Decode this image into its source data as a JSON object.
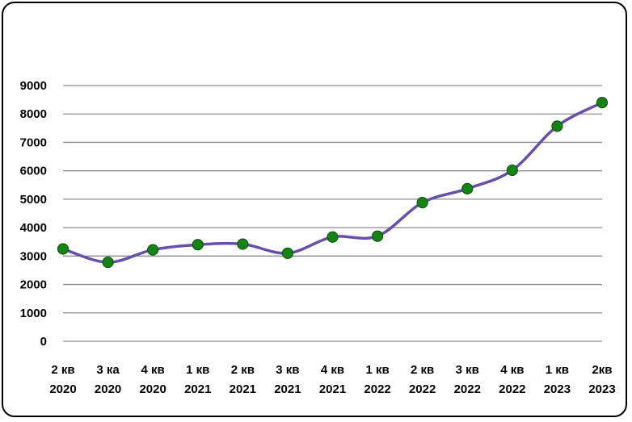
{
  "chart_data": {
    "type": "line",
    "title": "",
    "xlabel": "",
    "ylabel": "",
    "categories": [
      [
        "2 кв",
        "2020"
      ],
      [
        "3 ка",
        "2020"
      ],
      [
        "4 кв",
        "2020"
      ],
      [
        "1 кв",
        "2021"
      ],
      [
        "2 кв",
        "2021"
      ],
      [
        "3 кв",
        "2021"
      ],
      [
        "4 кв",
        "2021"
      ],
      [
        "1 кв",
        "2022"
      ],
      [
        "2 кв",
        "2022"
      ],
      [
        "3 кв",
        "2022"
      ],
      [
        "4 кв",
        "2022"
      ],
      [
        "1 кв",
        "2023"
      ],
      [
        "2кв",
        "2023"
      ]
    ],
    "series": [
      {
        "values": [
          3250,
          2780,
          3220,
          3400,
          3420,
          3100,
          3670,
          3700,
          4880,
          5370,
          6020,
          7570,
          8400
        ]
      }
    ],
    "ylim": [
      0,
      9000
    ],
    "yticks": [
      0,
      1000,
      2000,
      3000,
      4000,
      5000,
      6000,
      7000,
      8000,
      9000
    ],
    "grid": true,
    "legend": "none",
    "line_color": "#6650A8",
    "marker_color": "#168316",
    "marker_edge_color": "#0E5A0E",
    "grid_color": "#8C8C8C"
  }
}
